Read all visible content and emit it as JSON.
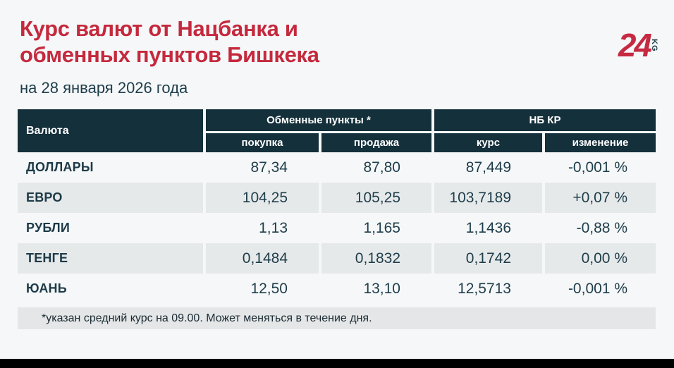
{
  "header": {
    "title_line1": "Курс валют от Нацбанка и",
    "title_line2": "обменных пунктов Бишкека",
    "subtitle": "на 28 января 2026 года",
    "logo_number": "24",
    "logo_country": "KG"
  },
  "chart_data": {
    "type": "table",
    "title": "Курс валют от Нацбанка и обменных пунктов Бишкека",
    "subtitle": "на 28 января 2026 года",
    "column_groups": [
      {
        "label": "Обменные пункты *",
        "covers": [
          "покупка",
          "продажа"
        ]
      },
      {
        "label": "НБ КР",
        "covers": [
          "курс",
          "изменение"
        ]
      }
    ],
    "columns": [
      "Валюта",
      "покупка",
      "продажа",
      "курс",
      "изменение"
    ],
    "rows": [
      {
        "currency": "ДОЛЛАРЫ",
        "buy": "87,34",
        "sell": "87,80",
        "rate": "87,449",
        "change": "-0,001 %"
      },
      {
        "currency": "ЕВРО",
        "buy": "104,25",
        "sell": "105,25",
        "rate": "103,7189",
        "change": "+0,07 %"
      },
      {
        "currency": "РУБЛИ",
        "buy": "1,13",
        "sell": "1,165",
        "rate": "1,1436",
        "change": "-0,88 %"
      },
      {
        "currency": "ТЕНГЕ",
        "buy": "0,1484",
        "sell": "0,1832",
        "rate": "0,1742",
        "change": "0,00 %"
      },
      {
        "currency": "ЮАНЬ",
        "buy": "12,50",
        "sell": "13,10",
        "rate": "12,5713",
        "change": "-0,001 %"
      }
    ],
    "footnote": "*указан средний курс на 09.00. Может меняться в течение дня."
  },
  "colors": {
    "accent_red": "#c5293d",
    "header_bg": "#14303b",
    "row_alt_bg": "#e6e9ea",
    "page_bg": "#f5f7f8",
    "text_dark": "#1e3d4a",
    "footnote_bg": "#e4e6e7",
    "bottom_bar": "#000000"
  }
}
